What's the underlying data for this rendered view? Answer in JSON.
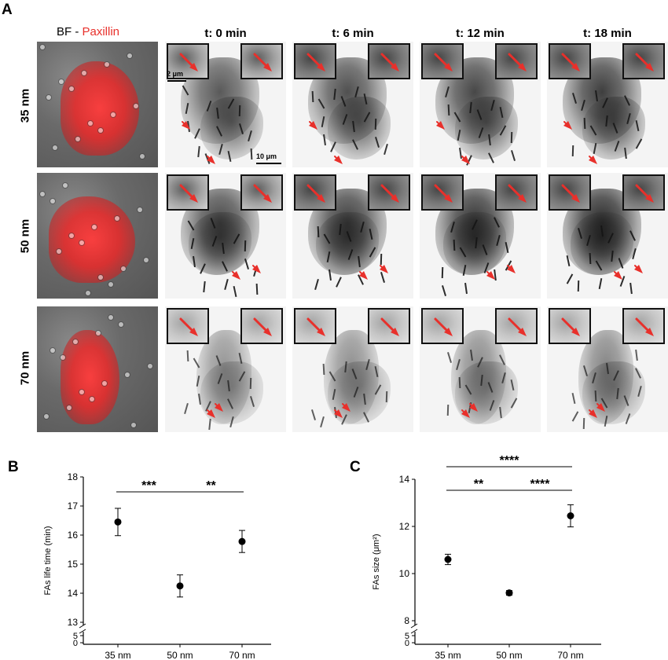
{
  "figure": {
    "panel_labels": {
      "a": "A",
      "b": "B",
      "c": "C"
    },
    "bf_title_prefix": "BF - ",
    "bf_title_red": "Paxillin",
    "time_headers": [
      "t: 0 min",
      "t: 6 min",
      "t: 12 min",
      "t: 18 min"
    ],
    "row_labels": [
      "35 nm",
      "50 nm",
      "70 nm"
    ],
    "scale_small": "2 μm",
    "scale_large": "10 μm",
    "colors": {
      "paxillin_red": "#e8302b",
      "arrow_red": "#e8302b"
    }
  },
  "chart_data": [
    {
      "type": "scatter",
      "panel": "B",
      "ylabel": "FAs life time (min)",
      "categories": [
        "35 nm",
        "50 nm",
        "70 nm"
      ],
      "values": [
        16.45,
        14.25,
        15.78
      ],
      "errors": [
        0.47,
        0.38,
        0.38
      ],
      "ylim": [
        13,
        18
      ],
      "yticks": [
        "13",
        "14",
        "15",
        "16",
        "17",
        "18"
      ],
      "broken_axis_ticks": [
        "5",
        "0"
      ],
      "significance": [
        {
          "from": "35 nm",
          "to": "50 nm",
          "label": "***"
        },
        {
          "from": "50 nm",
          "to": "70 nm",
          "label": "**"
        }
      ]
    },
    {
      "type": "scatter",
      "panel": "C",
      "ylabel": "FAs size (μm²)",
      "categories": [
        "35 nm",
        "50 nm",
        "70 nm"
      ],
      "values": [
        10.6,
        9.18,
        12.45
      ],
      "errors": [
        0.22,
        0.1,
        0.47
      ],
      "ylim": [
        8,
        14
      ],
      "yticks": [
        "8",
        "10",
        "12",
        "14"
      ],
      "broken_axis_ticks": [
        "5",
        "0"
      ],
      "significance": [
        {
          "from": "35 nm",
          "to": "50 nm",
          "label": "**"
        },
        {
          "from": "50 nm",
          "to": "70 nm",
          "label": "****"
        },
        {
          "from": "35 nm",
          "to": "70 nm",
          "label": "****"
        }
      ]
    }
  ]
}
